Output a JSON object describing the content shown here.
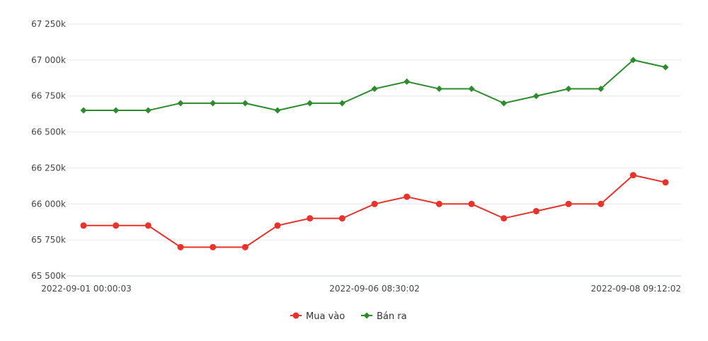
{
  "chart_data": {
    "type": "line",
    "x": [
      "2022-09-01 00:00:03",
      "",
      "",
      "",
      "",
      "",
      "",
      "",
      "",
      "2022-09-06 08:30:02",
      "",
      "",
      "",
      "",
      "",
      "",
      "",
      "",
      "2022-09-08 09:12:02"
    ],
    "x_tick_labels": [
      "2022-09-01 00:00:03",
      "2022-09-06 08:30:02",
      "2022-09-08 09:12:02"
    ],
    "y_tick_labels": [
      "65 500k",
      "65 750k",
      "66 000k",
      "66 250k",
      "66 500k",
      "66 750k",
      "67 000k",
      "67 250k"
    ],
    "y_ticks": [
      65500,
      65750,
      66000,
      66250,
      66500,
      66750,
      67000,
      67250
    ],
    "ylim": [
      65500,
      67250
    ],
    "grid": true,
    "legend_position": "bottom-center",
    "series": [
      {
        "name": "Mua vào",
        "color": "#e8322a",
        "marker": "circle",
        "values": [
          65850,
          65850,
          65850,
          65700,
          65700,
          65700,
          65850,
          65900,
          65900,
          66000,
          66050,
          66000,
          66000,
          65900,
          65950,
          66000,
          66000,
          66200,
          66150
        ]
      },
      {
        "name": "Bán ra",
        "color": "#2a8c2a",
        "marker": "diamond",
        "values": [
          66650,
          66650,
          66650,
          66700,
          66700,
          66700,
          66650,
          66700,
          66700,
          66800,
          66850,
          66800,
          66800,
          66700,
          66750,
          66800,
          66800,
          67000,
          66950
        ]
      }
    ]
  }
}
